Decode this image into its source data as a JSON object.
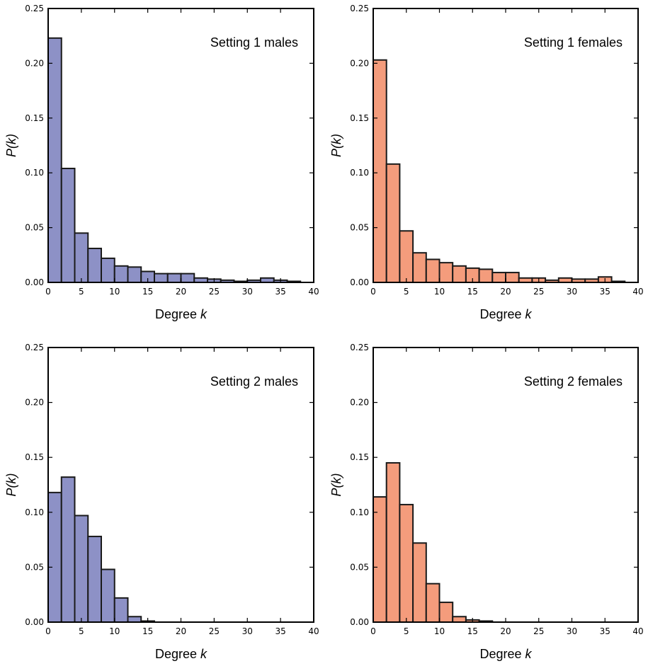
{
  "colors": {
    "male": "#8d91c6",
    "female": "#f49c7c",
    "edge": "#1a1a1a"
  },
  "chart_data": [
    {
      "type": "bar",
      "annotation": "Setting 1 males",
      "color_key": "male",
      "xlabel_prefix": "Degree ",
      "xlabel_var": "k",
      "ylabel": "P(k)",
      "xlim": [
        0,
        40
      ],
      "ylim": [
        0,
        0.25
      ],
      "bin_width": 2,
      "x_ticks": [
        "0",
        "5",
        "10",
        "15",
        "20",
        "25",
        "30",
        "35",
        "40"
      ],
      "y_ticks": [
        "0.00",
        "0.05",
        "0.10",
        "0.15",
        "0.20",
        "0.25"
      ],
      "bins": [
        0,
        2,
        4,
        6,
        8,
        10,
        12,
        14,
        16,
        18,
        20,
        22,
        24,
        26,
        28,
        30,
        32,
        34,
        36,
        38
      ],
      "values": [
        0.223,
        0.104,
        0.045,
        0.031,
        0.022,
        0.015,
        0.014,
        0.01,
        0.008,
        0.008,
        0.008,
        0.004,
        0.003,
        0.002,
        0.001,
        0.002,
        0.004,
        0.002,
        0.001,
        0.0
      ]
    },
    {
      "type": "bar",
      "annotation": "Setting 1 females",
      "color_key": "female",
      "xlabel_prefix": "Degree ",
      "xlabel_var": "k",
      "ylabel": "P(k)",
      "xlim": [
        0,
        40
      ],
      "ylim": [
        0,
        0.25
      ],
      "bin_width": 2,
      "x_ticks": [
        "0",
        "5",
        "10",
        "15",
        "20",
        "25",
        "30",
        "35",
        "40"
      ],
      "y_ticks": [
        "0.00",
        "0.05",
        "0.10",
        "0.15",
        "0.20",
        "0.25"
      ],
      "bins": [
        0,
        2,
        4,
        6,
        8,
        10,
        12,
        14,
        16,
        18,
        20,
        22,
        24,
        26,
        28,
        30,
        32,
        34,
        36,
        38
      ],
      "values": [
        0.203,
        0.108,
        0.047,
        0.027,
        0.021,
        0.018,
        0.015,
        0.013,
        0.012,
        0.009,
        0.009,
        0.004,
        0.004,
        0.002,
        0.004,
        0.003,
        0.003,
        0.005,
        0.001,
        0.0
      ]
    },
    {
      "type": "bar",
      "annotation": "Setting 2 males",
      "color_key": "male",
      "xlabel_prefix": "Degree ",
      "xlabel_var": "k",
      "ylabel": "P(k)",
      "xlim": [
        0,
        40
      ],
      "ylim": [
        0,
        0.25
      ],
      "bin_width": 2,
      "x_ticks": [
        "0",
        "5",
        "10",
        "15",
        "20",
        "25",
        "30",
        "35",
        "40"
      ],
      "y_ticks": [
        "0.00",
        "0.05",
        "0.10",
        "0.15",
        "0.20",
        "0.25"
      ],
      "bins": [
        0,
        2,
        4,
        6,
        8,
        10,
        12,
        14,
        16,
        18,
        20,
        22,
        24,
        26,
        28,
        30,
        32,
        34,
        36,
        38
      ],
      "values": [
        0.118,
        0.132,
        0.097,
        0.078,
        0.048,
        0.022,
        0.005,
        0.001,
        0.0,
        0.0,
        0.0,
        0.0,
        0.0,
        0.0,
        0.0,
        0.0,
        0.0,
        0.0,
        0.0,
        0.0
      ]
    },
    {
      "type": "bar",
      "annotation": "Setting 2 females",
      "color_key": "female",
      "xlabel_prefix": "Degree ",
      "xlabel_var": "k",
      "ylabel": "P(k)",
      "xlim": [
        0,
        40
      ],
      "ylim": [
        0,
        0.25
      ],
      "bin_width": 2,
      "x_ticks": [
        "0",
        "5",
        "10",
        "15",
        "20",
        "25",
        "30",
        "35",
        "40"
      ],
      "y_ticks": [
        "0.00",
        "0.05",
        "0.10",
        "0.15",
        "0.20",
        "0.25"
      ],
      "bins": [
        0,
        2,
        4,
        6,
        8,
        10,
        12,
        14,
        16,
        18,
        20,
        22,
        24,
        26,
        28,
        30,
        32,
        34,
        36,
        38
      ],
      "values": [
        0.114,
        0.145,
        0.107,
        0.072,
        0.035,
        0.018,
        0.005,
        0.002,
        0.001,
        0.0,
        0.0,
        0.0,
        0.0,
        0.0,
        0.0,
        0.0,
        0.0,
        0.0,
        0.0,
        0.0
      ]
    }
  ]
}
